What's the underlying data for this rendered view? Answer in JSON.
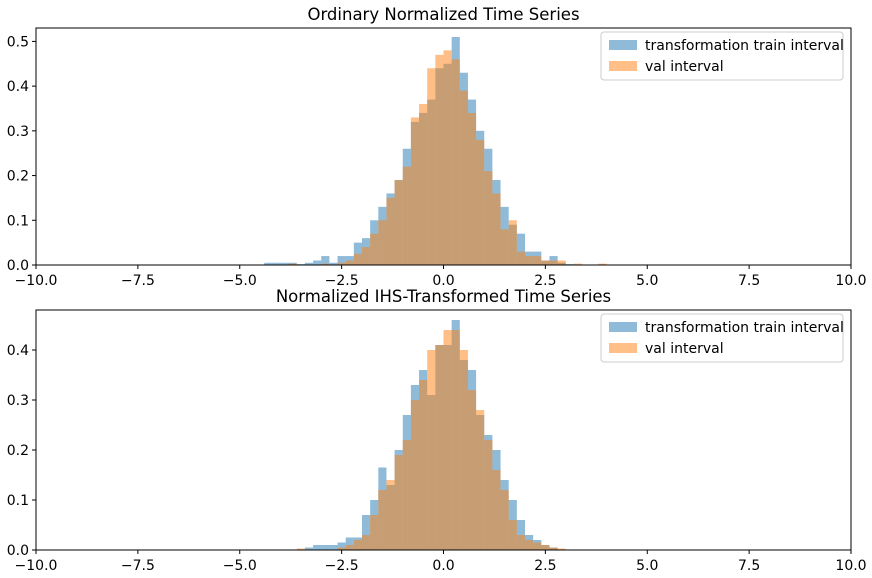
{
  "chart_data": [
    {
      "type": "histogram",
      "title": "Ordinary Normalized Time Series",
      "xlabel": "",
      "ylabel": "",
      "xlim": [
        -10,
        10
      ],
      "ylim": [
        0,
        0.53
      ],
      "xticks": [
        -10,
        -7.5,
        -5,
        -2.5,
        0,
        2.5,
        5,
        7.5,
        10
      ],
      "xtick_labels": [
        "−10.0",
        "−7.5",
        "−5.0",
        "−2.5",
        "0.0",
        "2.5",
        "5.0",
        "7.5",
        "10.0"
      ],
      "yticks": [
        0,
        0.1,
        0.2,
        0.3,
        0.4,
        0.5
      ],
      "ytick_labels": [
        "0.0",
        "0.1",
        "0.2",
        "0.3",
        "0.4",
        "0.5"
      ],
      "bin_width": 0.2,
      "legend_position": "top-right",
      "grid": false,
      "series": [
        {
          "name": "transformation train interval",
          "color": "#1f77b4",
          "opacity": 0.5,
          "bins": [
            [
              -4.4,
              0.005
            ],
            [
              -4.2,
              0.005
            ],
            [
              -4.0,
              0.005
            ],
            [
              -3.8,
              0.005
            ],
            [
              -3.6,
              0.002
            ],
            [
              -3.4,
              0.005
            ],
            [
              -3.2,
              0.01
            ],
            [
              -3.0,
              0.02
            ],
            [
              -2.8,
              0.005
            ],
            [
              -2.6,
              0.02
            ],
            [
              -2.4,
              0.02
            ],
            [
              -2.2,
              0.05
            ],
            [
              -2.0,
              0.06
            ],
            [
              -1.8,
              0.1
            ],
            [
              -1.6,
              0.13
            ],
            [
              -1.4,
              0.16
            ],
            [
              -1.2,
              0.19
            ],
            [
              -1.0,
              0.26
            ],
            [
              -0.8,
              0.32
            ],
            [
              -0.6,
              0.34
            ],
            [
              -0.4,
              0.37
            ],
            [
              -0.2,
              0.44
            ],
            [
              0.0,
              0.45
            ],
            [
              0.2,
              0.51
            ],
            [
              0.4,
              0.43
            ],
            [
              0.6,
              0.37
            ],
            [
              0.8,
              0.3
            ],
            [
              1.0,
              0.26
            ],
            [
              1.2,
              0.19
            ],
            [
              1.4,
              0.13
            ],
            [
              1.6,
              0.09
            ],
            [
              1.8,
              0.07
            ],
            [
              2.0,
              0.03
            ],
            [
              2.2,
              0.03
            ],
            [
              2.4,
              0.01
            ],
            [
              2.6,
              0.02
            ],
            [
              2.8,
              0.005
            ],
            [
              3.0,
              0.002
            ]
          ]
        },
        {
          "name": "val interval",
          "color": "#ff7f0e",
          "opacity": 0.5,
          "bins": [
            [
              -3.8,
              0.003
            ],
            [
              -3.0,
              0.003
            ],
            [
              -2.6,
              0.005
            ],
            [
              -2.4,
              0.01
            ],
            [
              -2.2,
              0.025
            ],
            [
              -2.0,
              0.04
            ],
            [
              -1.8,
              0.07
            ],
            [
              -1.6,
              0.1
            ],
            [
              -1.4,
              0.15
            ],
            [
              -1.2,
              0.19
            ],
            [
              -1.0,
              0.22
            ],
            [
              -0.8,
              0.33
            ],
            [
              -0.6,
              0.36
            ],
            [
              -0.4,
              0.44
            ],
            [
              -0.2,
              0.47
            ],
            [
              0.0,
              0.48
            ],
            [
              0.2,
              0.46
            ],
            [
              0.4,
              0.39
            ],
            [
              0.6,
              0.34
            ],
            [
              0.8,
              0.28
            ],
            [
              1.0,
              0.21
            ],
            [
              1.2,
              0.16
            ],
            [
              1.4,
              0.08
            ],
            [
              1.6,
              0.1
            ],
            [
              1.8,
              0.03
            ],
            [
              2.0,
              0.02
            ],
            [
              2.2,
              0.02
            ],
            [
              2.4,
              0.01
            ],
            [
              2.6,
              0.01
            ],
            [
              2.8,
              0.01
            ],
            [
              3.2,
              0.003
            ],
            [
              3.8,
              0.003
            ]
          ]
        }
      ]
    },
    {
      "type": "histogram",
      "title": "Normalized IHS-Transformed Time Series",
      "xlabel": "",
      "ylabel": "",
      "xlim": [
        -10,
        10
      ],
      "ylim": [
        0,
        0.48
      ],
      "xticks": [
        -10,
        -7.5,
        -5,
        -2.5,
        0,
        2.5,
        5,
        7.5,
        10
      ],
      "xtick_labels": [
        "−10.0",
        "−7.5",
        "−5.0",
        "−2.5",
        "0.0",
        "2.5",
        "5.0",
        "7.5",
        "10.0"
      ],
      "yticks": [
        0,
        0.1,
        0.2,
        0.3,
        0.4
      ],
      "ytick_labels": [
        "0.0",
        "0.1",
        "0.2",
        "0.3",
        "0.4"
      ],
      "bin_width": 0.2,
      "legend_position": "top-right",
      "grid": false,
      "series": [
        {
          "name": "transformation train interval",
          "color": "#1f77b4",
          "opacity": 0.5,
          "bins": [
            [
              -3.4,
              0.005
            ],
            [
              -3.2,
              0.01
            ],
            [
              -3.0,
              0.01
            ],
            [
              -2.8,
              0.01
            ],
            [
              -2.6,
              0.015
            ],
            [
              -2.4,
              0.025
            ],
            [
              -2.2,
              0.025
            ],
            [
              -2.0,
              0.07
            ],
            [
              -1.8,
              0.1
            ],
            [
              -1.6,
              0.165
            ],
            [
              -1.4,
              0.13
            ],
            [
              -1.2,
              0.2
            ],
            [
              -1.0,
              0.27
            ],
            [
              -0.8,
              0.33
            ],
            [
              -0.6,
              0.36
            ],
            [
              -0.4,
              0.31
            ],
            [
              -0.2,
              0.41
            ],
            [
              0.0,
              0.41
            ],
            [
              0.2,
              0.46
            ],
            [
              0.4,
              0.38
            ],
            [
              0.6,
              0.36
            ],
            [
              0.8,
              0.27
            ],
            [
              1.0,
              0.23
            ],
            [
              1.2,
              0.2
            ],
            [
              1.4,
              0.14
            ],
            [
              1.6,
              0.1
            ],
            [
              1.8,
              0.06
            ],
            [
              2.0,
              0.03
            ],
            [
              2.2,
              0.02
            ],
            [
              2.4,
              0.01
            ],
            [
              2.6,
              0.005
            ]
          ]
        },
        {
          "name": "val interval",
          "color": "#ff7f0e",
          "opacity": 0.5,
          "bins": [
            [
              -3.6,
              0.003
            ],
            [
              -2.6,
              0.005
            ],
            [
              -2.4,
              0.01
            ],
            [
              -2.2,
              0.02
            ],
            [
              -2.0,
              0.03
            ],
            [
              -1.8,
              0.07
            ],
            [
              -1.6,
              0.12
            ],
            [
              -1.4,
              0.14
            ],
            [
              -1.2,
              0.19
            ],
            [
              -1.0,
              0.22
            ],
            [
              -0.8,
              0.3
            ],
            [
              -0.6,
              0.34
            ],
            [
              -0.4,
              0.4
            ],
            [
              -0.2,
              0.41
            ],
            [
              0.0,
              0.44
            ],
            [
              0.2,
              0.44
            ],
            [
              0.4,
              0.4
            ],
            [
              0.6,
              0.32
            ],
            [
              0.8,
              0.28
            ],
            [
              1.0,
              0.22
            ],
            [
              1.2,
              0.16
            ],
            [
              1.4,
              0.12
            ],
            [
              1.6,
              0.06
            ],
            [
              1.8,
              0.03
            ],
            [
              2.0,
              0.02
            ],
            [
              2.2,
              0.015
            ],
            [
              2.4,
              0.01
            ],
            [
              2.6,
              0.005
            ],
            [
              2.8,
              0.003
            ]
          ]
        }
      ]
    }
  ]
}
